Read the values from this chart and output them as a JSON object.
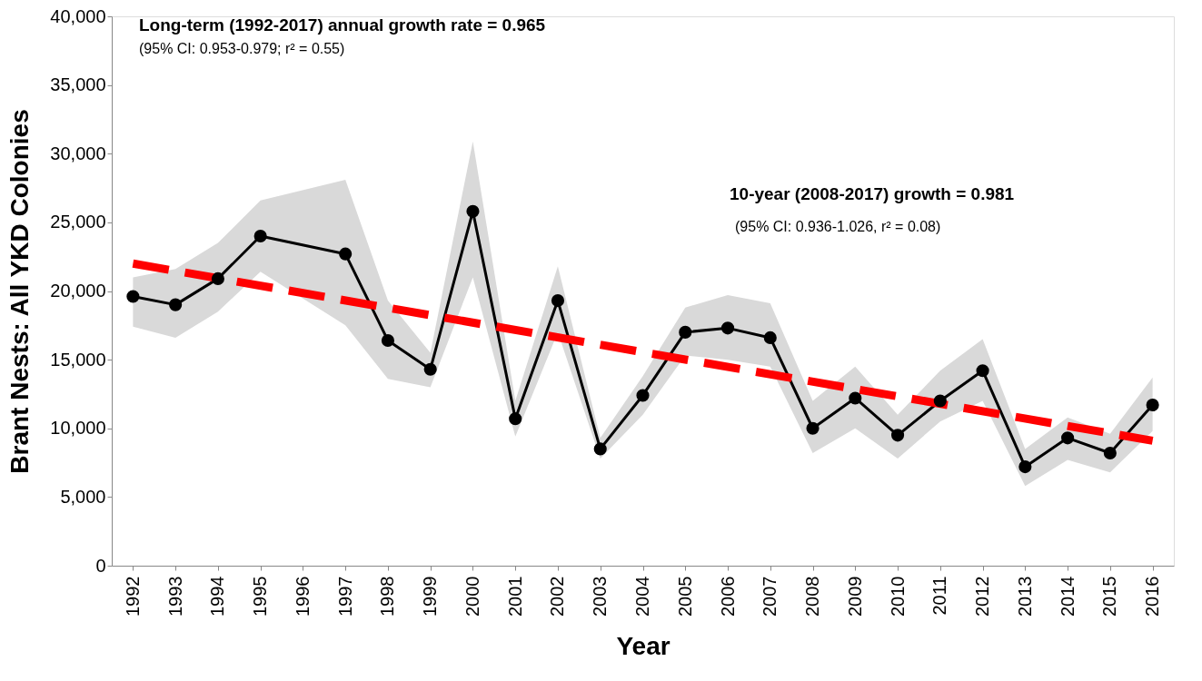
{
  "chart_data": {
    "type": "line",
    "xlabel": "Year",
    "ylabel": "Brant Nests: All YKD Colonies",
    "x": [
      1992,
      1993,
      1994,
      1995,
      1996,
      1997,
      1998,
      1999,
      2000,
      2001,
      2002,
      2003,
      2004,
      2005,
      2006,
      2007,
      2008,
      2009,
      2010,
      2011,
      2012,
      2013,
      2014,
      2015,
      2016
    ],
    "series": [
      {
        "color": "#000000",
        "marker": "circle",
        "line_style": "solid",
        "values": [
          19600,
          19000,
          20900,
          24000,
          null,
          22700,
          16400,
          14300,
          25800,
          10700,
          19300,
          8500,
          12400,
          17000,
          17300,
          16600,
          10000,
          12200,
          9500,
          12000,
          14200,
          7200,
          9300,
          8200,
          11700
        ],
        "lower": [
          17400,
          16600,
          18500,
          21400,
          null,
          17500,
          13600,
          13000,
          21000,
          9400,
          17000,
          7800,
          11000,
          15300,
          15000,
          14500,
          8200,
          10000,
          7800,
          10500,
          12000,
          5800,
          7700,
          6800,
          9800
        ],
        "upper": [
          21000,
          21600,
          23500,
          26600,
          null,
          28100,
          19300,
          15500,
          30900,
          12000,
          21800,
          9300,
          13800,
          18800,
          19700,
          19100,
          12000,
          14500,
          11000,
          14200,
          16500,
          8500,
          10800,
          9600,
          13700
        ]
      },
      {
        "color": "#ff0000",
        "marker": "none",
        "line_style": "dashed",
        "x": [
          1992,
          2016
        ],
        "values": [
          22000,
          9100
        ]
      }
    ],
    "xlim": [
      1991.5,
      2016.5
    ],
    "xticks": [
      1992,
      1993,
      1994,
      1995,
      1996,
      1997,
      1998,
      1999,
      2000,
      2001,
      2002,
      2003,
      2004,
      2005,
      2006,
      2007,
      2008,
      2009,
      2010,
      2011,
      2012,
      2013,
      2014,
      2015,
      2016
    ],
    "ylim": [
      0,
      40000
    ],
    "yticks": [
      {
        "value": 0,
        "label": "0"
      },
      {
        "value": 5000,
        "label": "5,000"
      },
      {
        "value": 10000,
        "label": "10,000"
      },
      {
        "value": 15000,
        "label": "15,000"
      },
      {
        "value": 20000,
        "label": "20,000"
      },
      {
        "value": 25000,
        "label": "25,000"
      },
      {
        "value": 30000,
        "label": "30,000"
      },
      {
        "value": 35000,
        "label": "35,000"
      },
      {
        "value": 40000,
        "label": "40,000"
      }
    ],
    "grid": false,
    "annotations": [
      "Long-term (1992-2017) annual growth rate = 0.965",
      "(95% CI: 0.953-0.979; r² = 0.55)",
      "10-year (2008-2017) growth = 0.981",
      "(95% CI: 0.936-1.026, r² = 0.08)"
    ]
  }
}
